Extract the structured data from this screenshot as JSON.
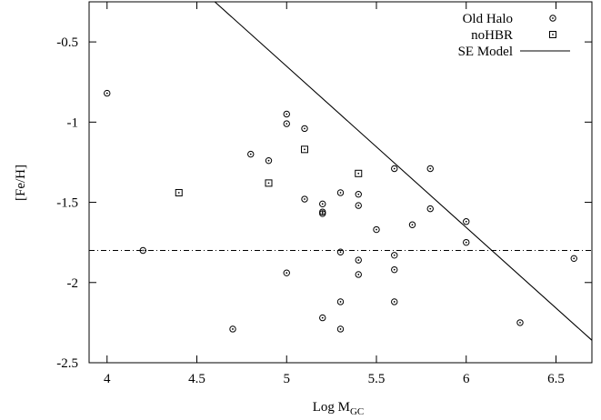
{
  "chart_data": {
    "type": "scatter",
    "xlabel": "Log M",
    "xlabel_sub": "GC",
    "ylabel": "[Fe/H]",
    "xlim": [
      3.9,
      6.7
    ],
    "ylim": [
      -2.5,
      -0.25
    ],
    "xticks": [
      4,
      4.5,
      5,
      5.5,
      6,
      6.5
    ],
    "xtick_labels": [
      "4",
      "4.5",
      "5",
      "5.5",
      "6",
      "6.5"
    ],
    "yticks": [
      -2.5,
      -2,
      -1.5,
      -1,
      -0.5
    ],
    "ytick_labels": [
      "-2.5",
      "-2",
      "-1.5",
      "-1",
      "-0.5"
    ],
    "grid": false,
    "legend_position": "top-right",
    "series": [
      {
        "name": "Old Halo",
        "marker": "circle-dot",
        "points": [
          [
            4.0,
            -0.82
          ],
          [
            4.2,
            -1.8
          ],
          [
            4.7,
            -2.29
          ],
          [
            4.8,
            -1.2
          ],
          [
            4.9,
            -1.24
          ],
          [
            5.0,
            -0.95
          ],
          [
            5.0,
            -1.01
          ],
          [
            5.0,
            -1.94
          ],
          [
            5.1,
            -1.04
          ],
          [
            5.1,
            -1.48
          ],
          [
            5.2,
            -1.51
          ],
          [
            5.2,
            -1.56
          ],
          [
            5.2,
            -1.57
          ],
          [
            5.2,
            -2.22
          ],
          [
            5.3,
            -1.44
          ],
          [
            5.3,
            -1.81
          ],
          [
            5.3,
            -2.12
          ],
          [
            5.3,
            -2.29
          ],
          [
            5.4,
            -1.45
          ],
          [
            5.4,
            -1.52
          ],
          [
            5.4,
            -1.86
          ],
          [
            5.4,
            -1.95
          ],
          [
            5.5,
            -1.67
          ],
          [
            5.6,
            -1.29
          ],
          [
            5.6,
            -1.83
          ],
          [
            5.6,
            -1.92
          ],
          [
            5.6,
            -2.12
          ],
          [
            5.7,
            -1.64
          ],
          [
            5.8,
            -1.29
          ],
          [
            5.8,
            -1.54
          ],
          [
            6.0,
            -1.62
          ],
          [
            6.0,
            -1.75
          ],
          [
            6.3,
            -2.25
          ],
          [
            6.6,
            -1.85
          ]
        ]
      },
      {
        "name": "noHBR",
        "marker": "square-dot",
        "points": [
          [
            4.4,
            -1.44
          ],
          [
            4.9,
            -1.38
          ],
          [
            5.1,
            -1.17
          ],
          [
            5.4,
            -1.32
          ]
        ]
      }
    ],
    "lines": [
      {
        "name": "SE Model",
        "style": "solid",
        "points": [
          [
            4.6,
            -0.25
          ],
          [
            6.7,
            -2.36
          ]
        ]
      },
      {
        "name": "",
        "style": "dash-dot",
        "points": [
          [
            3.9,
            -1.8
          ],
          [
            6.7,
            -1.8
          ]
        ]
      }
    ]
  },
  "colors": {
    "ink": "#000000",
    "background": "#ffffff"
  }
}
